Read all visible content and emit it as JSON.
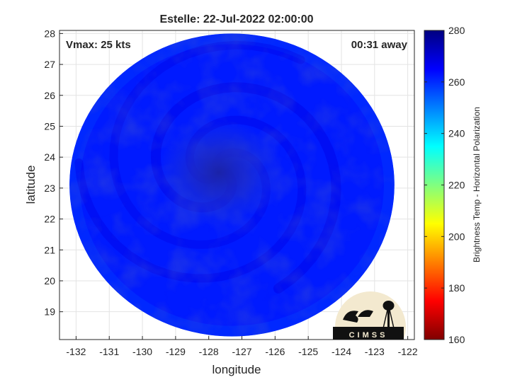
{
  "chart_data": {
    "type": "heatmap",
    "title": "Estelle: 22-Jul-2022 02:00:00",
    "xlabel": "longitude",
    "ylabel": "latitude",
    "xlim": [
      -132.5,
      -121.8
    ],
    "ylim": [
      18.1,
      28.1
    ],
    "xticks": [
      -132,
      -131,
      -130,
      -129,
      -128,
      -127,
      -126,
      -125,
      -124,
      -123,
      -122
    ],
    "yticks": [
      19,
      20,
      21,
      22,
      23,
      24,
      25,
      26,
      27,
      28
    ],
    "grid": true,
    "annotations": {
      "left": "Vmax: 25 kts",
      "right": "00:31 away"
    },
    "colorbar": {
      "label": "Brightness Temp - Horizontal Polarization",
      "min": 160,
      "max": 280,
      "ticks": [
        160,
        180,
        200,
        220,
        240,
        260,
        280
      ],
      "colormap": [
        "#800000",
        "#ff0000",
        "#ff8000",
        "#ffff00",
        "#80ff80",
        "#00ffff",
        "#0080ff",
        "#0000ff",
        "#000080"
      ]
    },
    "swath": {
      "center": [
        -127.3,
        23.1
      ],
      "radius_lon": 4.9,
      "radius_lat": 4.9,
      "background_tb": 262,
      "cold_center": [
        -127.7,
        23.5
      ],
      "cold_center_tb": 268
    },
    "logo": {
      "text": "CIMSS"
    }
  }
}
